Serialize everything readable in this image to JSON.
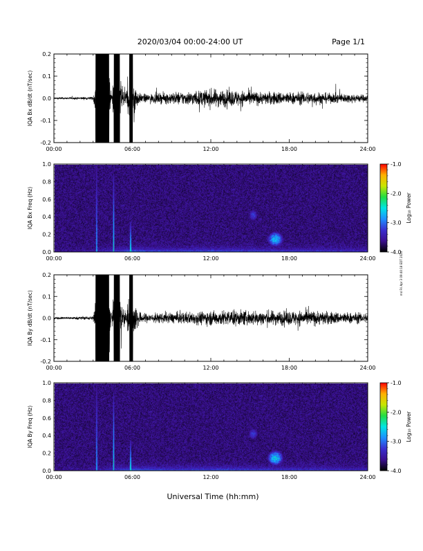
{
  "header": {
    "date_range": "2020/03/04  00:00-24:00 UT",
    "page": "Page 1/1"
  },
  "footer": {
    "xaxis_title": "Universal Time (hh:mm)"
  },
  "side_stamp": "md Fri Apr 3 09:40:18 EDT 2020",
  "colors": {
    "trace": "#000000",
    "colormap": [
      "#000000",
      "#3b0f8f",
      "#3a2fd0",
      "#1e90ff",
      "#00e5e5",
      "#22dd44",
      "#c8e600",
      "#ffb000",
      "#ff0000"
    ]
  },
  "chart_data": [
    {
      "type": "line",
      "ylabel": "IQA Bx dB/dt (nT/sec)",
      "xlim": [
        0,
        24
      ],
      "ylim": [
        -0.2,
        0.2
      ],
      "xticks": [
        "00:00",
        "06:00",
        "12:00",
        "18:00",
        "24:00"
      ],
      "yticks": [
        "-0.2",
        "-0.1",
        "0.0",
        "0.1",
        "0.2"
      ],
      "ytick_values": [
        -0.2,
        -0.1,
        0.0,
        0.1,
        0.2
      ],
      "series": [
        {
          "envelope_hours": [
            0,
            1,
            2,
            3.0,
            3.2,
            3.6,
            3.8,
            4.2,
            4.4,
            4.6,
            5.0,
            5.5,
            5.8,
            6.0,
            6.5,
            7,
            8,
            9,
            10,
            11,
            12,
            13,
            14,
            15,
            16,
            17,
            18,
            19,
            20,
            21,
            22,
            23,
            24
          ],
          "amplitude": [
            0.008,
            0.008,
            0.01,
            0.012,
            0.2,
            0.2,
            0.2,
            0.2,
            0.03,
            0.2,
            0.2,
            0.05,
            0.2,
            0.2,
            0.04,
            0.035,
            0.04,
            0.05,
            0.055,
            0.06,
            0.075,
            0.07,
            0.065,
            0.06,
            0.05,
            0.055,
            0.05,
            0.05,
            0.055,
            0.04,
            0.04,
            0.035,
            0.03
          ]
        }
      ]
    },
    {
      "type": "heatmap",
      "ylabel": "IQA Bx Freq (Hz)",
      "xlim": [
        0,
        24
      ],
      "ylim": [
        0,
        1.0
      ],
      "xticks": [
        "00:00",
        "06:00",
        "12:00",
        "18:00",
        "24:00"
      ],
      "yticks": [
        "0.0",
        "0.2",
        "0.4",
        "0.6",
        "0.8",
        "1.0"
      ],
      "ytick_values": [
        0.0,
        0.2,
        0.4,
        0.6,
        0.8,
        1.0
      ],
      "colorbar": {
        "label": "Log₁₀ Power",
        "range": [
          -4.0,
          -1.0
        ],
        "ticks": [
          "-1.0",
          "-2.0",
          "-3.0",
          "-4.0"
        ],
        "tick_values": [
          -1.0,
          -2.0,
          -3.0,
          -4.0
        ]
      },
      "features": [
        {
          "hour": 3.2,
          "freq_top": 1.0,
          "log_power": -2.8
        },
        {
          "hour": 4.5,
          "freq_top": 0.9,
          "log_power": -2.5
        },
        {
          "hour": 5.8,
          "freq_top": 0.35,
          "log_power": -2.3
        },
        {
          "hours": [
            14.8,
            15.6
          ],
          "freq": [
            0.35,
            0.5
          ],
          "log_power": -3.0
        },
        {
          "hours": [
            16.2,
            17.6
          ],
          "freq": [
            0.05,
            0.25
          ],
          "log_power": -2.4
        }
      ]
    },
    {
      "type": "line",
      "ylabel": "IQA By dB/dt (nT/sec)",
      "xlim": [
        0,
        24
      ],
      "ylim": [
        -0.2,
        0.2
      ],
      "xticks": [
        "00:00",
        "06:00",
        "12:00",
        "18:00",
        "24:00"
      ],
      "yticks": [
        "-0.2",
        "-0.1",
        "0.0",
        "0.1",
        "0.2"
      ],
      "ytick_values": [
        -0.2,
        -0.1,
        0.0,
        0.1,
        0.2
      ],
      "series": [
        {
          "envelope_hours": [
            0,
            1,
            2,
            3.0,
            3.2,
            3.6,
            3.8,
            4.2,
            4.4,
            4.6,
            5.0,
            5.5,
            5.8,
            6.0,
            6.5,
            7,
            8,
            9,
            10,
            11,
            12,
            13,
            14,
            15,
            16,
            17,
            18,
            19,
            20,
            21,
            22,
            23,
            24
          ],
          "amplitude": [
            0.01,
            0.01,
            0.012,
            0.015,
            0.2,
            0.2,
            0.2,
            0.2,
            0.04,
            0.2,
            0.2,
            0.05,
            0.2,
            0.2,
            0.05,
            0.04,
            0.04,
            0.045,
            0.05,
            0.055,
            0.06,
            0.065,
            0.065,
            0.06,
            0.065,
            0.06,
            0.06,
            0.065,
            0.06,
            0.055,
            0.05,
            0.045,
            0.04
          ]
        }
      ]
    },
    {
      "type": "heatmap",
      "ylabel": "IQA By Freq (Hz)",
      "xlim": [
        0,
        24
      ],
      "ylim": [
        0,
        1.0
      ],
      "xticks": [
        "00:00",
        "06:00",
        "12:00",
        "18:00",
        "24:00"
      ],
      "yticks": [
        "0.0",
        "0.2",
        "0.4",
        "0.6",
        "0.8",
        "1.0"
      ],
      "ytick_values": [
        0.0,
        0.2,
        0.4,
        0.6,
        0.8,
        1.0
      ],
      "colorbar": {
        "label": "Log₁₀ Power",
        "range": [
          -4.0,
          -1.0
        ],
        "ticks": [
          "-1.0",
          "-2.0",
          "-3.0",
          "-4.0"
        ],
        "tick_values": [
          -1.0,
          -2.0,
          -3.0,
          -4.0
        ]
      },
      "features": [
        {
          "hour": 3.2,
          "freq_top": 1.0,
          "log_power": -2.8
        },
        {
          "hour": 4.5,
          "freq_top": 0.9,
          "log_power": -2.5
        },
        {
          "hour": 5.8,
          "freq_top": 0.35,
          "log_power": -2.3
        },
        {
          "hours": [
            14.8,
            15.6
          ],
          "freq": [
            0.35,
            0.5
          ],
          "log_power": -3.0
        },
        {
          "hours": [
            16.2,
            17.6
          ],
          "freq": [
            0.05,
            0.25
          ],
          "log_power": -2.3
        }
      ]
    }
  ]
}
